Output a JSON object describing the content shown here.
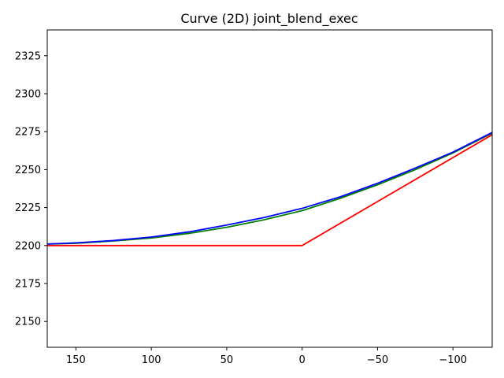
{
  "chart_data": {
    "type": "line",
    "title": "Curve (2D) joint_blend_exec",
    "xlabel": "",
    "ylabel": "",
    "xlim": [
      169,
      -126
    ],
    "ylim": [
      2133,
      2342
    ],
    "x_inverted": true,
    "grid": false,
    "x_ticks": [
      150,
      100,
      50,
      0,
      -50,
      -100
    ],
    "x_tick_labels": [
      "150",
      "100",
      "50",
      "0",
      "−50",
      "−100"
    ],
    "y_ticks": [
      2150,
      2175,
      2200,
      2225,
      2250,
      2275,
      2300,
      2325
    ],
    "y_tick_labels": [
      "2150",
      "2175",
      "2200",
      "2225",
      "2250",
      "2275",
      "2300",
      "2325"
    ],
    "series": [
      {
        "color": "#ff0000",
        "points": [
          [
            169,
            2200
          ],
          [
            0,
            2200
          ],
          [
            -126,
            2273
          ]
        ]
      },
      {
        "color": "#008000",
        "points": [
          [
            169,
            2201
          ],
          [
            150,
            2201.5
          ],
          [
            125,
            2203
          ],
          [
            100,
            2205
          ],
          [
            75,
            2208
          ],
          [
            50,
            2212
          ],
          [
            25,
            2217
          ],
          [
            0,
            2223
          ],
          [
            -25,
            2231
          ],
          [
            -50,
            2240
          ],
          [
            -75,
            2250
          ],
          [
            -100,
            2261
          ],
          [
            -126,
            2274
          ]
        ]
      },
      {
        "color": "#0000ff",
        "points": [
          [
            169,
            2201
          ],
          [
            150,
            2201.8
          ],
          [
            125,
            2203.3
          ],
          [
            100,
            2205.6
          ],
          [
            75,
            2209
          ],
          [
            50,
            2213.5
          ],
          [
            25,
            2218.5
          ],
          [
            0,
            2224.5
          ],
          [
            -25,
            2232
          ],
          [
            -50,
            2241
          ],
          [
            -75,
            2251
          ],
          [
            -100,
            2261.5
          ],
          [
            -126,
            2274.5
          ]
        ]
      }
    ]
  }
}
